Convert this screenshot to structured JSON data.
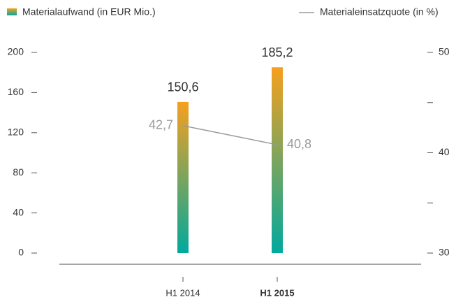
{
  "chart_data": {
    "type": "bar_line",
    "categories": [
      "H1 2014",
      "H1 2015"
    ],
    "highlight_index": 1,
    "series": [
      {
        "name": "Materialaufwand (in EUR Mio.)",
        "type": "bar",
        "colors": [
          "#00a99d",
          "#f6a01e"
        ],
        "values": [
          150.6,
          185.2
        ],
        "value_labels": [
          "150,6",
          "185,2"
        ]
      },
      {
        "name": "Materialeinsatzquote (in %)",
        "type": "line",
        "axis": "y2",
        "color": "#9a9a9a",
        "values": [
          42.7,
          40.8
        ],
        "value_labels": [
          "42,7",
          "40,8"
        ]
      }
    ],
    "ylim": [
      0,
      200
    ],
    "yticks": [
      0,
      40,
      80,
      120,
      160,
      200
    ],
    "y2lim": [
      30,
      50
    ],
    "y2ticks": [
      30,
      40,
      50
    ],
    "y2minorticks": [
      35,
      45
    ]
  }
}
